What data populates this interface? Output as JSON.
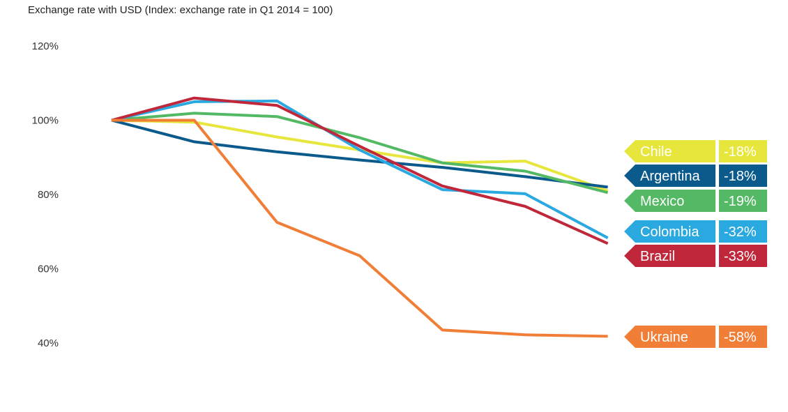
{
  "subtitle": "Exchange rate with USD (Index: exchange rate in Q1 2014 = 100)",
  "chart_data": {
    "type": "line",
    "subtitle": "Exchange rate with USD (Index: exchange rate in Q1 2014 = 100)",
    "ylim": [
      40,
      120
    ],
    "y_ticks": [
      "120%",
      "100%",
      "80%",
      "60%",
      "40%"
    ],
    "y_tick_values": [
      120,
      100,
      80,
      60,
      40
    ],
    "x_points": 7,
    "xlabel": "",
    "ylabel": "",
    "grid": false,
    "legend": "right",
    "series": [
      {
        "name": "Chile",
        "change": "-18%",
        "color": "#e6e63c",
        "values": [
          100,
          99.5,
          95.5,
          92,
          88.5,
          89,
          81
        ]
      },
      {
        "name": "Argentina",
        "change": "-18%",
        "color": "#0b5a8c",
        "values": [
          100,
          94.2,
          91.5,
          89.3,
          87.3,
          84.8,
          82
        ]
      },
      {
        "name": "Mexico",
        "change": "-19%",
        "color": "#54b964",
        "values": [
          100,
          101.9,
          101,
          95.3,
          88.5,
          86.3,
          80.5
        ]
      },
      {
        "name": "Colombia",
        "change": "-32%",
        "color": "#2aa8e0",
        "values": [
          100,
          105,
          105.2,
          92,
          81.3,
          80.2,
          68.3
        ]
      },
      {
        "name": "Brazil",
        "change": "-33%",
        "color": "#c0273a",
        "values": [
          100,
          106,
          104,
          93,
          82.3,
          76.8,
          66.8
        ]
      },
      {
        "name": "Ukraine",
        "change": "-58%",
        "color": "#f07e37",
        "values": [
          100,
          100,
          72.5,
          63.5,
          43.5,
          42.2,
          41.8
        ]
      }
    ]
  }
}
